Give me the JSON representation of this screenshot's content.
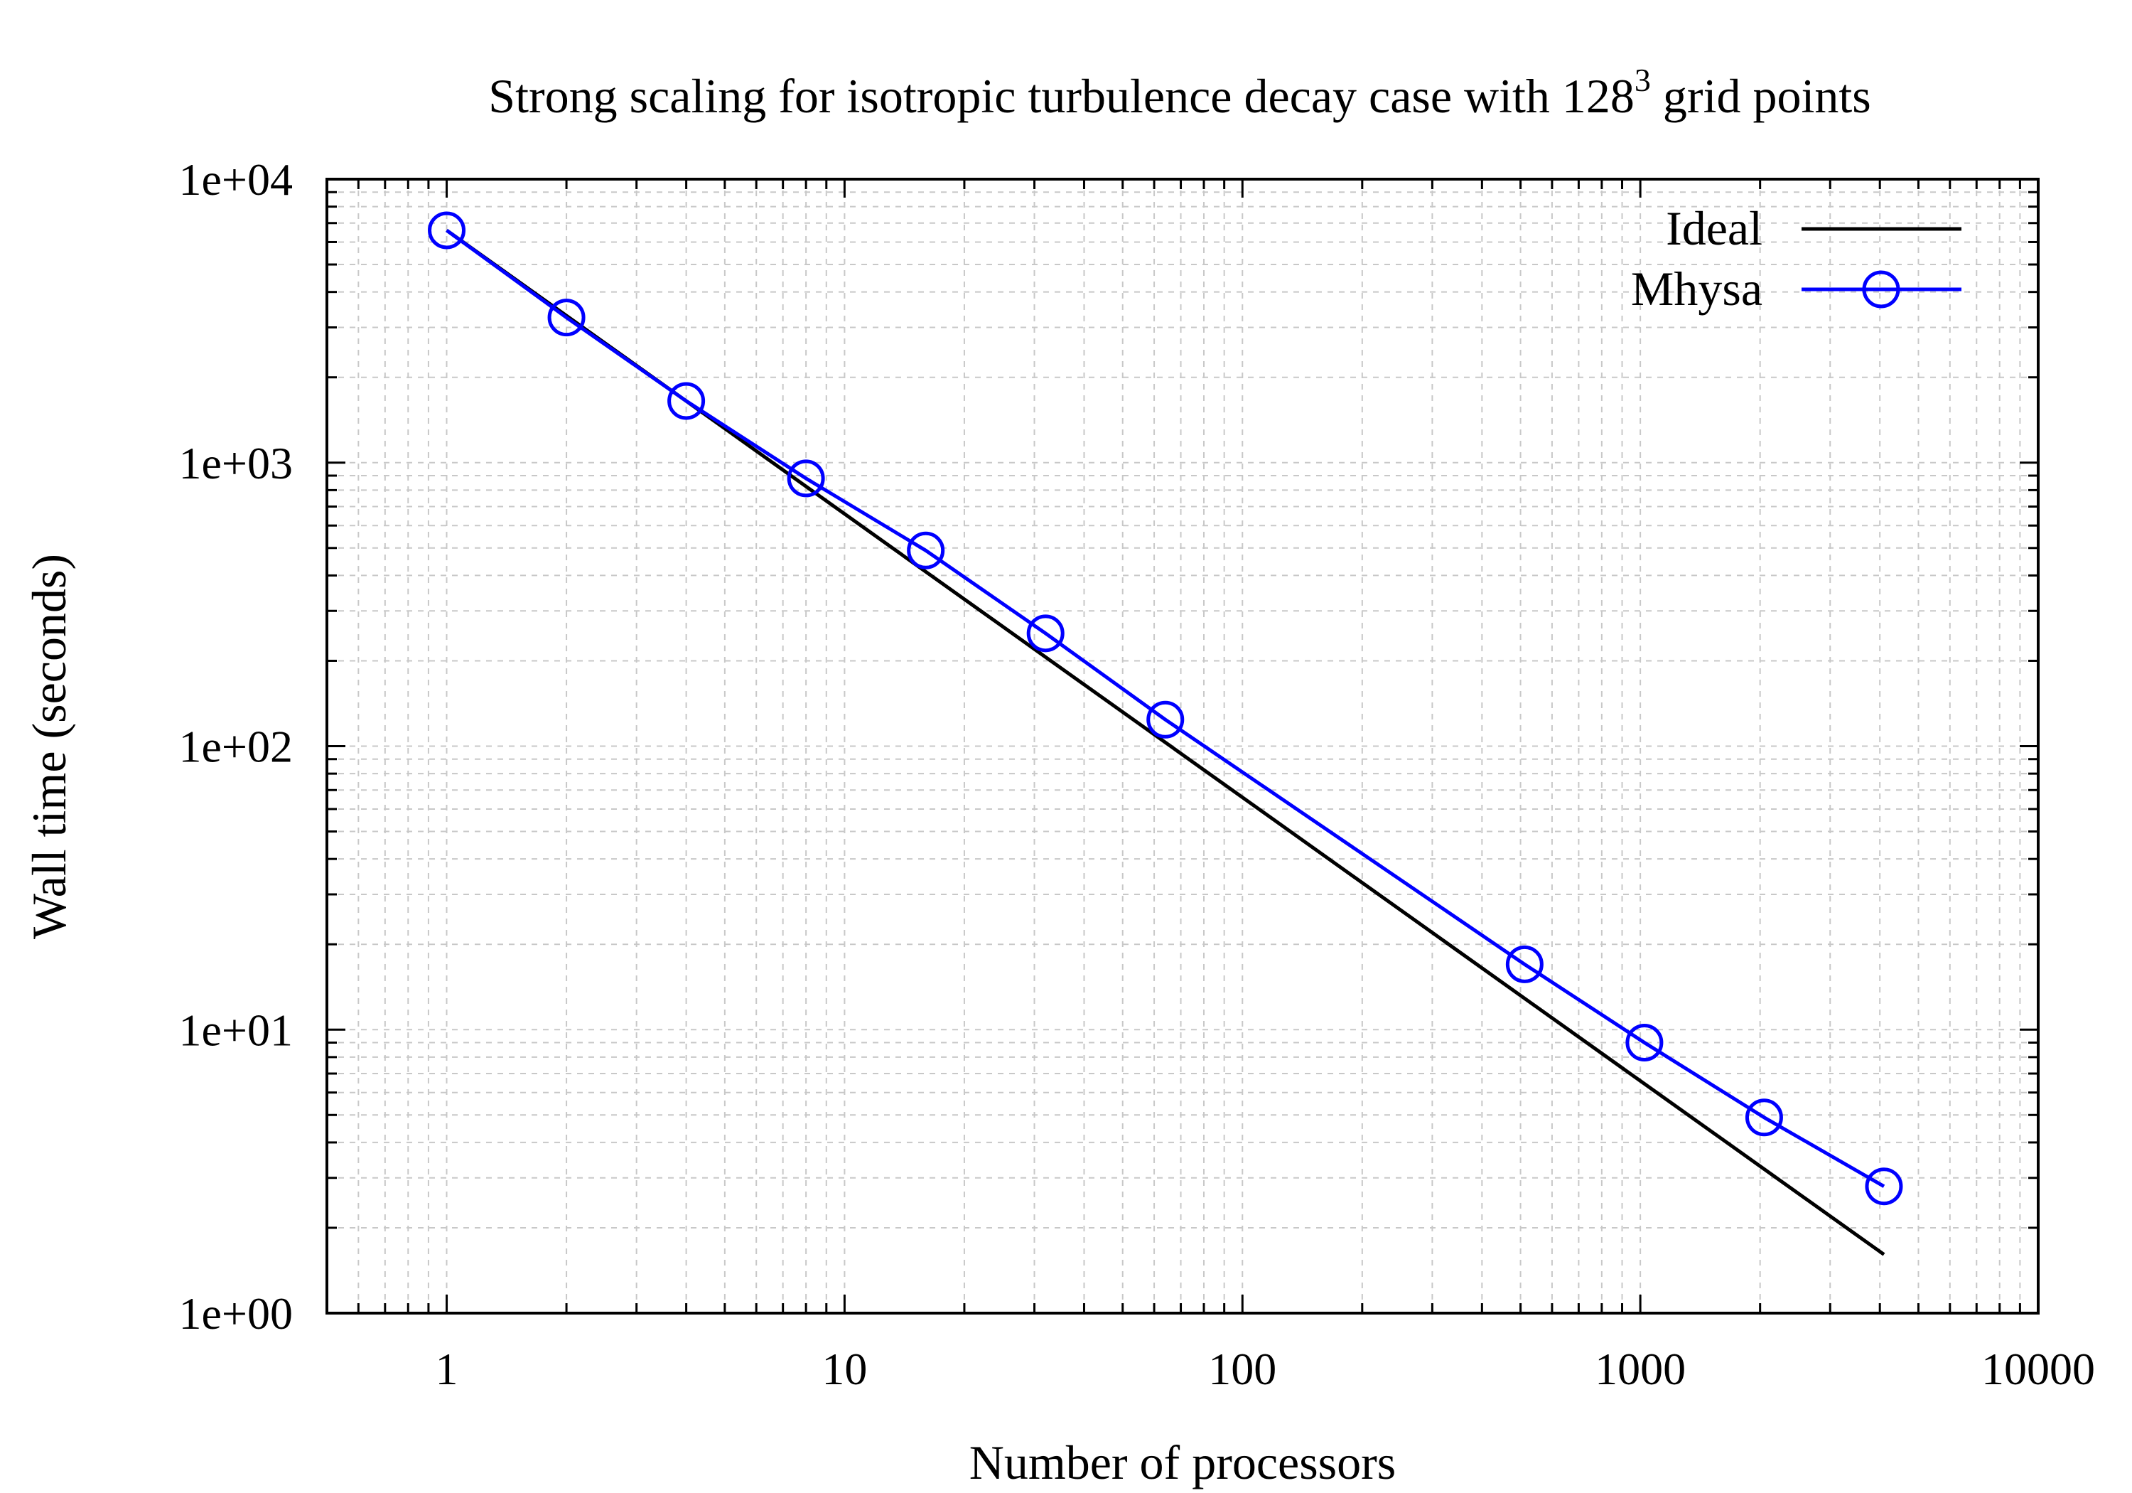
{
  "chart_data": {
    "type": "line",
    "title": {
      "main": "Strong scaling for isotropic turbulence decay case with 128",
      "sup": "3",
      "tail": " grid points"
    },
    "xlabel": "Number of processors",
    "ylabel": "Wall time (seconds)",
    "x_scale": "log",
    "y_scale": "log",
    "xlim": [
      0.5,
      10000
    ],
    "ylim": [
      1,
      10000
    ],
    "x_ticks": [
      {
        "value": 1,
        "label": "1"
      },
      {
        "value": 10,
        "label": "10"
      },
      {
        "value": 100,
        "label": "100"
      },
      {
        "value": 1000,
        "label": "1000"
      },
      {
        "value": 10000,
        "label": "10000"
      }
    ],
    "y_ticks": [
      {
        "value": 1,
        "label": "1e+00"
      },
      {
        "value": 10,
        "label": "1e+01"
      },
      {
        "value": 100,
        "label": "1e+02"
      },
      {
        "value": 1000,
        "label": "1e+03"
      },
      {
        "value": 10000,
        "label": "1e+04"
      }
    ],
    "grid": true,
    "legend_position": "top-right",
    "series": [
      {
        "name": "Ideal",
        "color": "#000000",
        "marker": "none",
        "x": [
          1,
          4096
        ],
        "y": [
          6600,
          1.61
        ]
      },
      {
        "name": "Mhysa",
        "color": "#0000ff",
        "marker": "open-circle",
        "x": [
          1,
          2,
          4,
          8,
          16,
          32,
          64,
          512,
          1024,
          2048,
          4096
        ],
        "y": [
          6600,
          3250,
          1650,
          880,
          490,
          250,
          124,
          17,
          9,
          4.9,
          2.8
        ]
      }
    ]
  }
}
